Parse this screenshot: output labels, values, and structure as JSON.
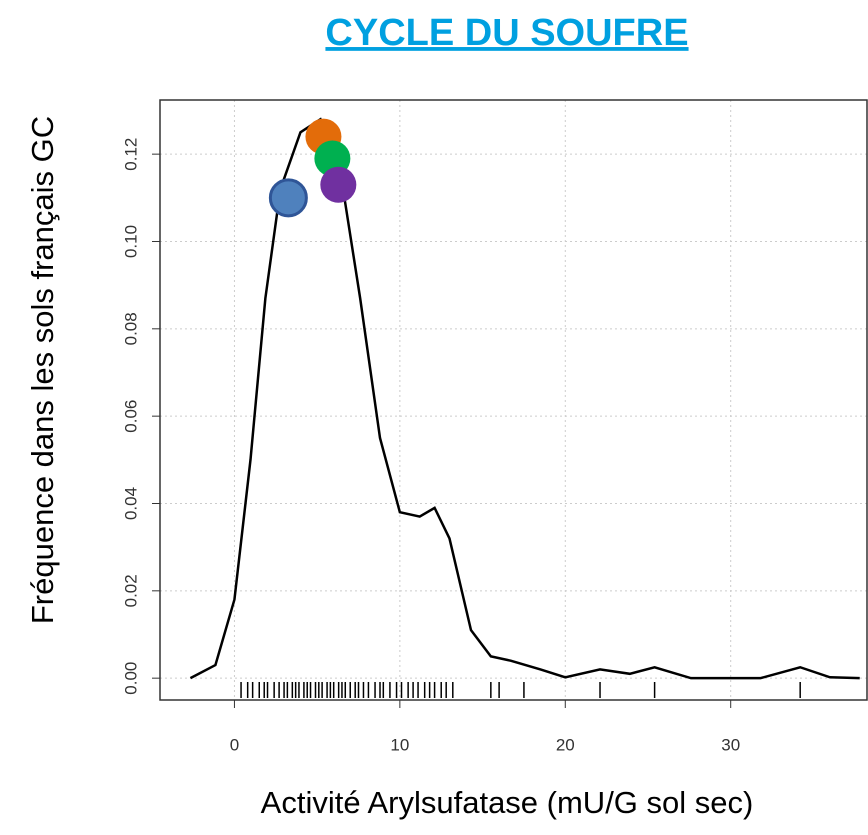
{
  "chart_data": {
    "type": "density",
    "title": "CYCLE DU SOUFRE",
    "xlabel": "Activité Arylsufatase (mU/G sol sec)",
    "ylabel": "Fréquence dans les sols français GC",
    "xlim": [
      -4.5,
      38.3
    ],
    "ylim": [
      -0.005,
      0.1324
    ],
    "xticks": [
      0,
      10,
      20,
      30
    ],
    "yticks": [
      {
        "value": 0,
        "label": "0.00"
      },
      {
        "value": 0.02,
        "label": "0.02"
      },
      {
        "value": 0.04,
        "label": "0.04"
      },
      {
        "value": 0.06,
        "label": "0.06"
      },
      {
        "value": 0.08,
        "label": "0.08"
      },
      {
        "value": 0.1,
        "label": "0.10"
      },
      {
        "value": 0.12,
        "label": "0.12"
      }
    ],
    "grid": true,
    "curve": {
      "color": "#000000",
      "x": [
        -2.66,
        -1.15,
        0,
        0.97,
        1.87,
        2.78,
        3.99,
        5.2,
        6.4,
        7.6,
        8.8,
        10.0,
        11.2,
        12.1,
        13.0,
        14.3,
        15.5,
        16.7,
        18.5,
        20,
        22.1,
        23.9,
        25.4,
        27.6,
        31.8,
        34.2,
        36,
        37.8
      ],
      "y": [
        0,
        0.003,
        0.018,
        0.05,
        0.087,
        0.112,
        0.125,
        0.128,
        0.116,
        0.087,
        0.055,
        0.038,
        0.037,
        0.039,
        0.032,
        0.011,
        0.005,
        0.004,
        0.002,
        0.0002,
        0.002,
        0.001,
        0.0025,
        0,
        0,
        0.0025,
        0.0002,
        0
      ]
    },
    "rug": [
      0.4,
      0.8,
      1.1,
      1.5,
      1.8,
      2.0,
      2.4,
      2.7,
      3.0,
      3.2,
      3.5,
      3.7,
      3.9,
      4.2,
      4.4,
      4.6,
      4.9,
      5.1,
      5.3,
      5.6,
      5.8,
      6.0,
      6.3,
      6.5,
      6.7,
      7.0,
      7.3,
      7.5,
      7.8,
      8.1,
      8.5,
      8.8,
      9.0,
      9.4,
      9.8,
      10.1,
      10.5,
      10.8,
      11.1,
      11.5,
      11.8,
      12.1,
      12.5,
      12.8,
      13.2,
      15.5,
      16.0,
      17.5,
      22.1,
      25.4,
      34.2
    ],
    "points": [
      {
        "x": 3.26,
        "y": 0.11,
        "color": "#4f81bd"
      },
      {
        "x": 5.38,
        "y": 0.124,
        "color": "#e36c0a"
      },
      {
        "x": 5.92,
        "y": 0.119,
        "color": "#00b050"
      },
      {
        "x": 6.28,
        "y": 0.113,
        "color": "#7030a0"
      }
    ]
  }
}
